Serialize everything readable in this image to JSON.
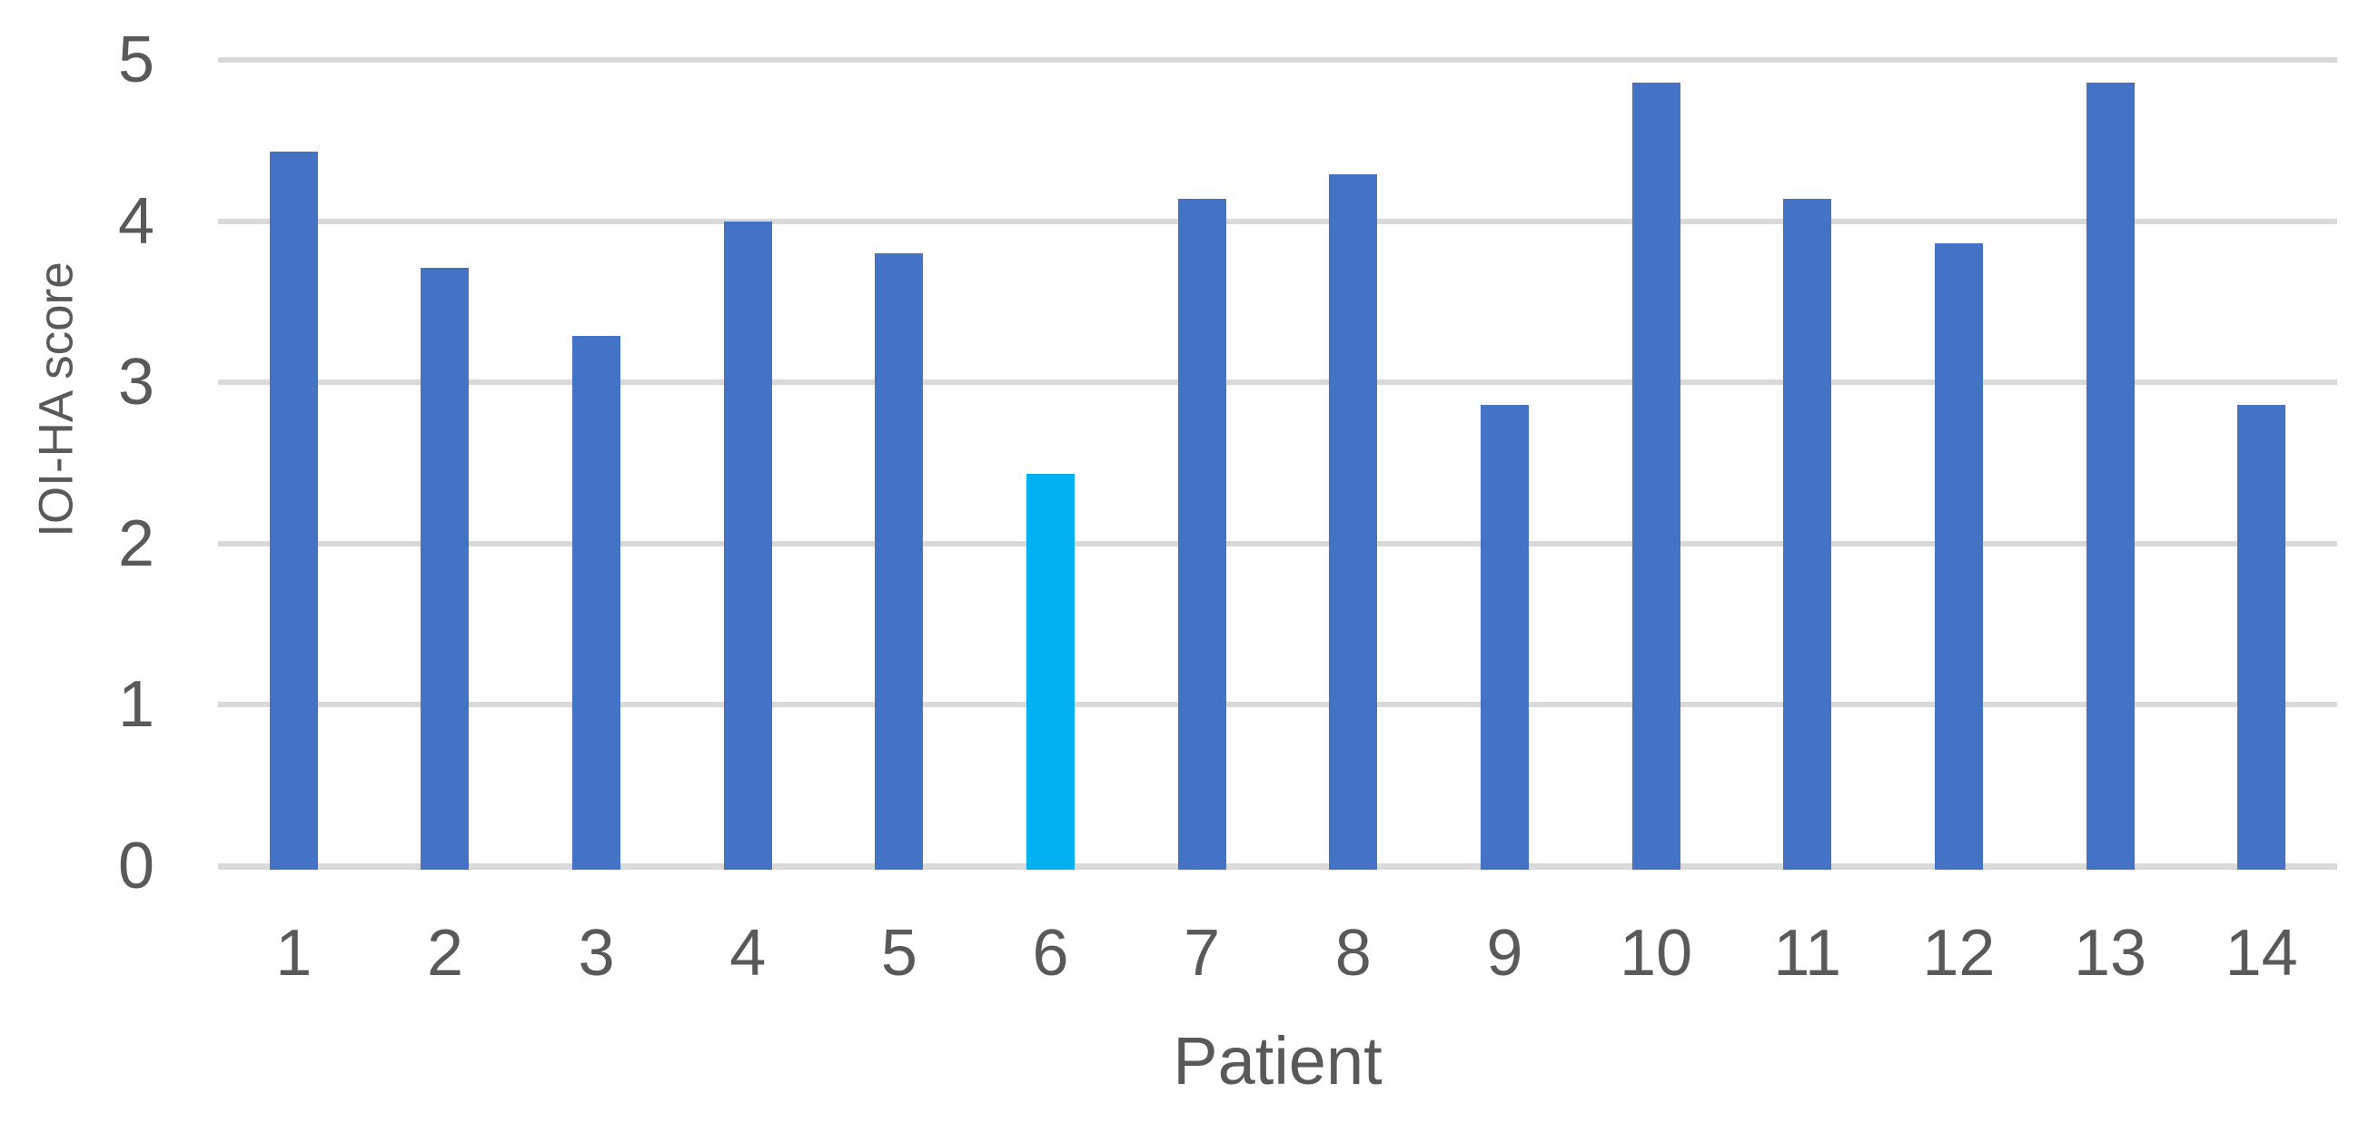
{
  "chart_data": {
    "type": "bar",
    "title": "",
    "categories": [
      "1",
      "2",
      "3",
      "4",
      "5",
      "6",
      "7",
      "8",
      "9",
      "10",
      "11",
      "12",
      "13",
      "14"
    ],
    "values": [
      4.43,
      3.71,
      3.29,
      4.0,
      3.8,
      2.43,
      4.14,
      4.29,
      2.86,
      4.86,
      4.14,
      3.86,
      4.86,
      2.86
    ],
    "xlabel": "Patient",
    "ylabel": "IOI-HA score",
    "ylim": [
      0,
      5
    ],
    "yticks": [
      "0",
      "1",
      "2",
      "3",
      "4",
      "5"
    ],
    "grid": true,
    "legend": false,
    "bar_color": "#4472C4",
    "highlight_index": 5,
    "highlight_color": "#00B0F0",
    "gridline_color": "#D9D9D9",
    "axis_line_color": "#D9D9D9",
    "text_color": "#595959",
    "background_color": "#FFFFFF"
  }
}
